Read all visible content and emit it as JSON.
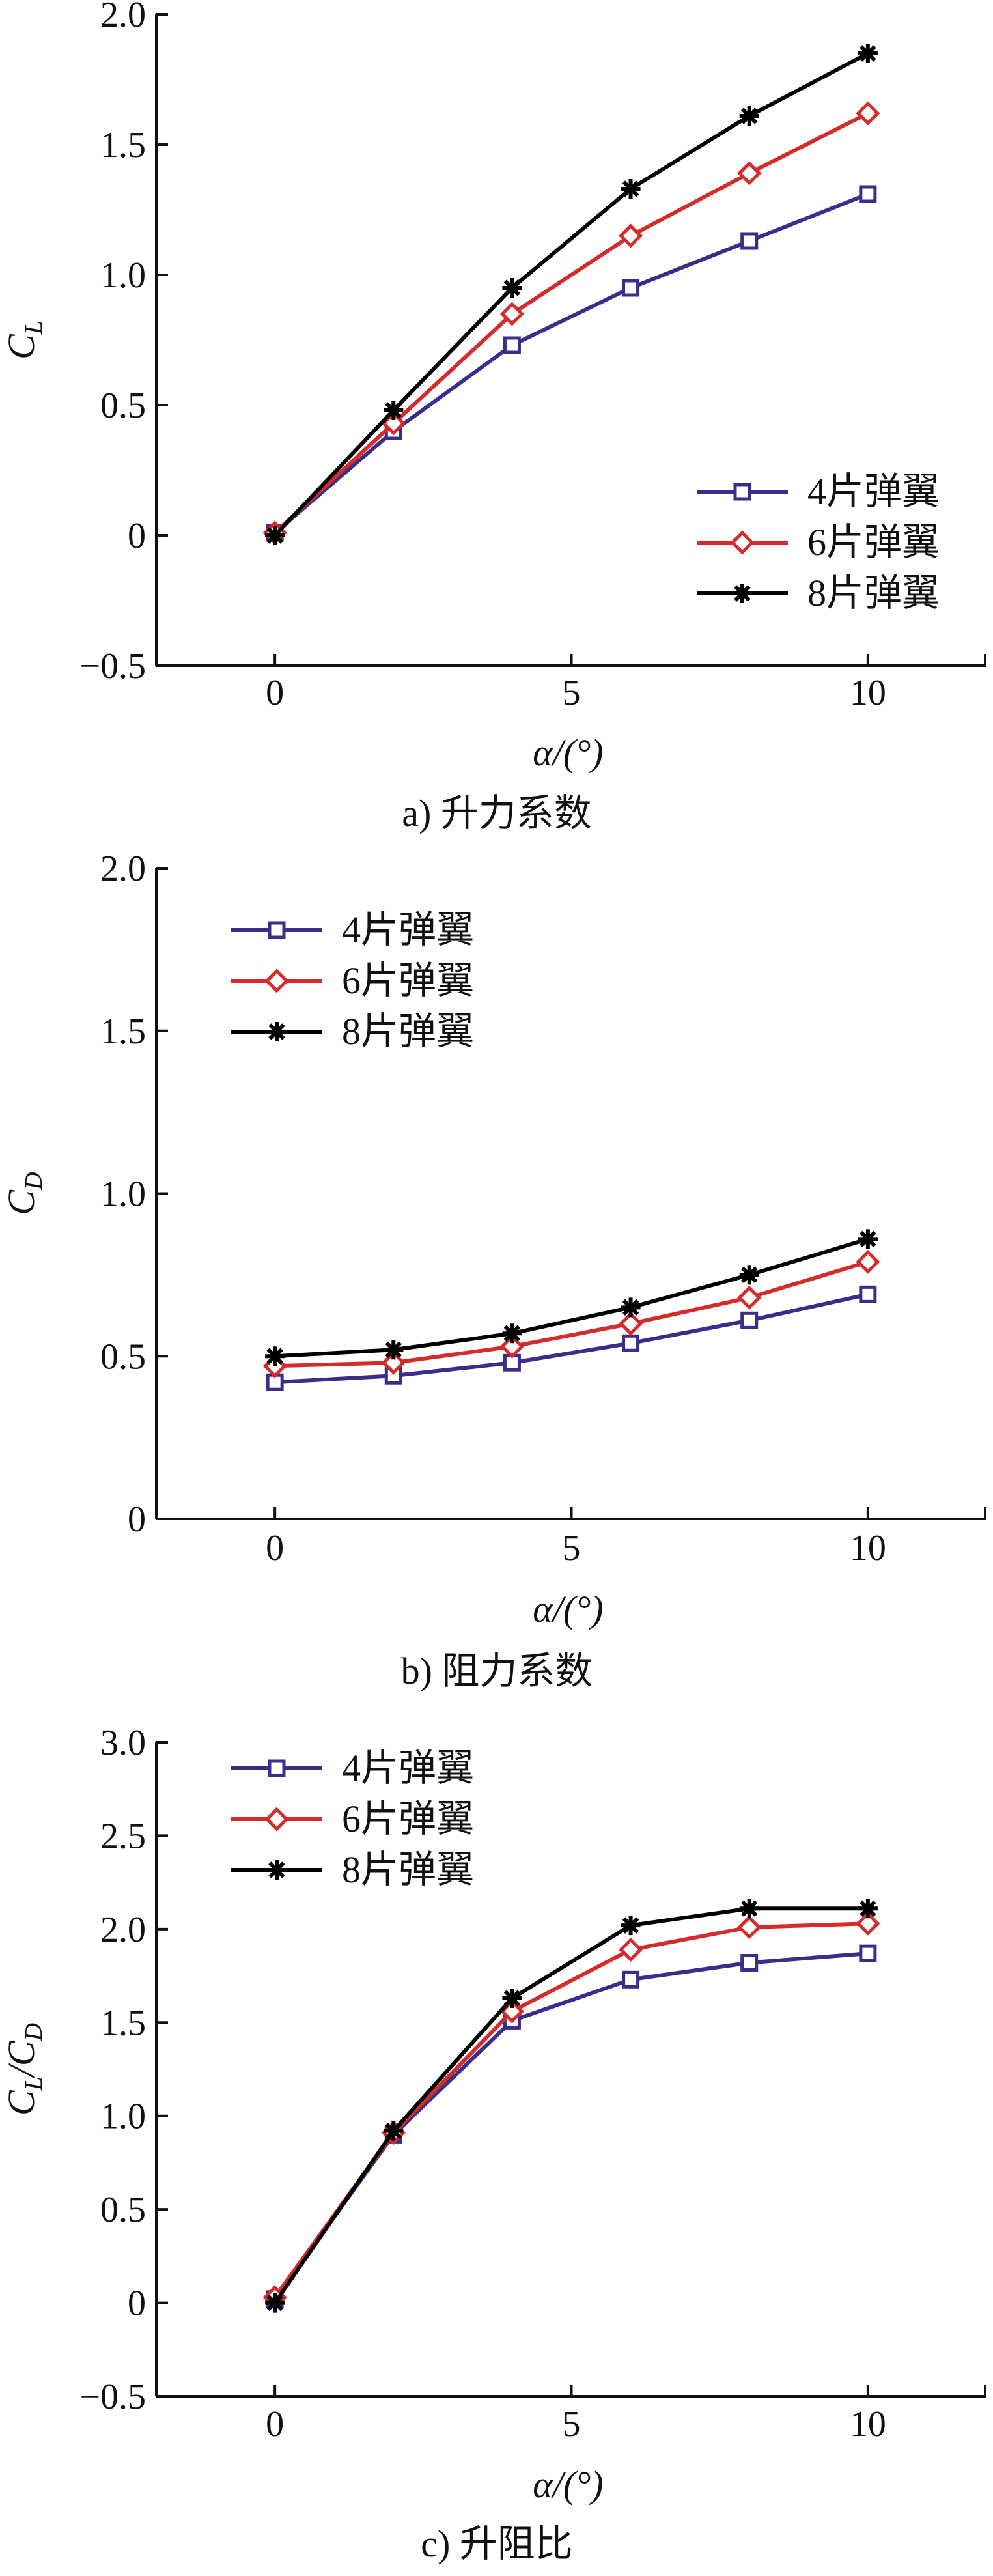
{
  "chart_data": [
    {
      "type": "line",
      "caption": "a) 升力系数",
      "xlabel": "α/(°)",
      "ylabel_main": "C",
      "ylabel_sub": "L",
      "xlim": [
        -2,
        12
      ],
      "ylim": [
        -0.5,
        2.0
      ],
      "xticks": [
        0,
        5,
        10
      ],
      "yticks": [
        -0.5,
        0,
        0.5,
        1.0,
        1.5,
        2.0
      ],
      "ytick_labels": [
        "−0.5",
        "0",
        "0.5",
        "1.0",
        "1.5",
        "2.0"
      ],
      "xtick_labels": [
        "0",
        "5",
        "10"
      ],
      "x": [
        0,
        2,
        4,
        6,
        8,
        10
      ],
      "legend_position": "bottom-right",
      "series": [
        {
          "name": "4片弹翼",
          "color": "#3b2d8c",
          "marker": "square",
          "values": [
            0.01,
            0.4,
            0.73,
            0.95,
            1.13,
            1.31
          ]
        },
        {
          "name": "6片弹翼",
          "color": "#d62b2b",
          "marker": "diamond",
          "values": [
            0.01,
            0.43,
            0.85,
            1.15,
            1.39,
            1.62
          ]
        },
        {
          "name": "8片弹翼",
          "color": "#000000",
          "marker": "star",
          "values": [
            0.0,
            0.48,
            0.95,
            1.33,
            1.61,
            1.85
          ]
        }
      ]
    },
    {
      "type": "line",
      "caption": "b) 阻力系数",
      "xlabel": "α/(°)",
      "ylabel_main": "C",
      "ylabel_sub": "D",
      "xlim": [
        -2,
        12
      ],
      "ylim": [
        0,
        2.0
      ],
      "xticks": [
        0,
        5,
        10
      ],
      "yticks": [
        0,
        0.5,
        1.0,
        1.5,
        2.0
      ],
      "ytick_labels": [
        "0",
        "0.5",
        "1.0",
        "1.5",
        "2.0"
      ],
      "xtick_labels": [
        "0",
        "5",
        "10"
      ],
      "x": [
        0,
        2,
        4,
        6,
        8,
        10
      ],
      "legend_position": "top-left",
      "series": [
        {
          "name": "4片弹翼",
          "color": "#3b2d8c",
          "marker": "square",
          "values": [
            0.42,
            0.44,
            0.48,
            0.54,
            0.61,
            0.69
          ]
        },
        {
          "name": "6片弹翼",
          "color": "#d62b2b",
          "marker": "diamond",
          "values": [
            0.47,
            0.48,
            0.53,
            0.6,
            0.68,
            0.79
          ]
        },
        {
          "name": "8片弹翼",
          "color": "#000000",
          "marker": "star",
          "values": [
            0.5,
            0.52,
            0.57,
            0.65,
            0.75,
            0.86
          ]
        }
      ]
    },
    {
      "type": "line",
      "caption": "c) 升阻比",
      "xlabel": "α/(°)",
      "ylabel_main": "C",
      "ylabel_sub": "L",
      "ylabel_main2": "/C",
      "ylabel_sub2": "D",
      "xlim": [
        -2,
        12
      ],
      "ylim": [
        -0.5,
        3.0
      ],
      "xticks": [
        0,
        5,
        10
      ],
      "yticks": [
        -0.5,
        0,
        0.5,
        1.0,
        1.5,
        2.0,
        2.5,
        3.0
      ],
      "ytick_labels": [
        "−0.5",
        "0",
        "0.5",
        "1.0",
        "1.5",
        "2.0",
        "2.5",
        "3.0"
      ],
      "xtick_labels": [
        "0",
        "5",
        "10"
      ],
      "x": [
        0,
        2,
        4,
        6,
        8,
        10
      ],
      "legend_position": "top-left",
      "series": [
        {
          "name": "4片弹翼",
          "color": "#3b2d8c",
          "marker": "square",
          "values": [
            0.02,
            0.9,
            1.51,
            1.73,
            1.82,
            1.87
          ]
        },
        {
          "name": "6片弹翼",
          "color": "#d62b2b",
          "marker": "diamond",
          "values": [
            0.03,
            0.91,
            1.56,
            1.89,
            2.01,
            2.03
          ]
        },
        {
          "name": "8片弹翼",
          "color": "#000000",
          "marker": "star",
          "values": [
            0.0,
            0.92,
            1.63,
            2.02,
            2.11,
            2.11
          ]
        }
      ]
    }
  ]
}
